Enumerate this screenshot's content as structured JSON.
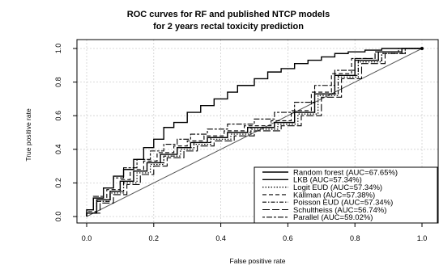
{
  "chart_data": {
    "type": "line",
    "title": "ROC curves for RF and published NTCP models",
    "subtitle": "for 2 years rectal toxicity prediction",
    "xlabel": "False positive rate",
    "ylabel": "True positive rate",
    "xlim": [
      0,
      1
    ],
    "ylim": [
      0,
      1
    ],
    "xticks": [
      "0.0",
      "0.2",
      "0.4",
      "0.6",
      "0.8",
      "1.0"
    ],
    "yticks": [
      "0.0",
      "0.2",
      "0.4",
      "0.6",
      "0.8",
      "1.0"
    ],
    "grid": true,
    "legend_position": "bottom-right",
    "reference_line": [
      [
        0,
        0
      ],
      [
        1,
        1
      ]
    ],
    "series": [
      {
        "name": "Random forest (AUC=67.65%)",
        "dash": "solid",
        "x": [
          0,
          0,
          0.02,
          0.02,
          0.05,
          0.05,
          0.08,
          0.08,
          0.11,
          0.11,
          0.14,
          0.14,
          0.17,
          0.17,
          0.2,
          0.2,
          0.23,
          0.23,
          0.26,
          0.26,
          0.3,
          0.3,
          0.34,
          0.34,
          0.38,
          0.38,
          0.42,
          0.42,
          0.45,
          0.45,
          0.5,
          0.5,
          0.54,
          0.54,
          0.58,
          0.58,
          0.62,
          0.62,
          0.66,
          0.66,
          0.7,
          0.7,
          0.74,
          0.74,
          0.78,
          0.78,
          0.83,
          0.83,
          0.88,
          0.88,
          0.94,
          0.94,
          1.0
        ],
        "y": [
          0,
          0.04,
          0.04,
          0.11,
          0.11,
          0.17,
          0.17,
          0.24,
          0.24,
          0.28,
          0.28,
          0.34,
          0.34,
          0.41,
          0.41,
          0.46,
          0.46,
          0.53,
          0.53,
          0.56,
          0.56,
          0.62,
          0.62,
          0.66,
          0.66,
          0.7,
          0.7,
          0.74,
          0.74,
          0.78,
          0.78,
          0.82,
          0.82,
          0.86,
          0.86,
          0.88,
          0.88,
          0.91,
          0.91,
          0.93,
          0.93,
          0.95,
          0.95,
          0.97,
          0.97,
          0.98,
          0.98,
          0.99,
          0.99,
          1.0,
          1.0,
          1.0,
          1.0
        ]
      },
      {
        "name": "LKB (AUC=57.34%)",
        "dash": "solid",
        "x": [
          0,
          0,
          0.03,
          0.03,
          0.07,
          0.07,
          0.1,
          0.1,
          0.14,
          0.14,
          0.18,
          0.18,
          0.22,
          0.22,
          0.27,
          0.27,
          0.31,
          0.31,
          0.36,
          0.36,
          0.42,
          0.42,
          0.48,
          0.48,
          0.56,
          0.56,
          0.62,
          0.62,
          0.68,
          0.68,
          0.74,
          0.74,
          0.8,
          0.8,
          0.87,
          0.87,
          0.94,
          0.94,
          1.0
        ],
        "y": [
          0,
          0.02,
          0.02,
          0.1,
          0.1,
          0.15,
          0.15,
          0.21,
          0.21,
          0.27,
          0.27,
          0.32,
          0.32,
          0.37,
          0.37,
          0.41,
          0.41,
          0.44,
          0.44,
          0.47,
          0.47,
          0.5,
          0.5,
          0.53,
          0.53,
          0.56,
          0.56,
          0.62,
          0.62,
          0.73,
          0.73,
          0.84,
          0.84,
          0.93,
          0.93,
          0.98,
          0.98,
          1.0,
          1.0
        ]
      },
      {
        "name": "Logit EUD (AUC=57.34%)",
        "dash": "dotted",
        "x": [
          0,
          0,
          0.03,
          0.03,
          0.07,
          0.07,
          0.11,
          0.11,
          0.15,
          0.15,
          0.19,
          0.19,
          0.23,
          0.23,
          0.28,
          0.28,
          0.32,
          0.32,
          0.37,
          0.37,
          0.43,
          0.43,
          0.49,
          0.49,
          0.57,
          0.57,
          0.63,
          0.63,
          0.69,
          0.69,
          0.75,
          0.75,
          0.81,
          0.81,
          0.88,
          0.88,
          0.95,
          0.95,
          1.0
        ],
        "y": [
          0,
          0.02,
          0.02,
          0.09,
          0.09,
          0.14,
          0.14,
          0.2,
          0.2,
          0.26,
          0.26,
          0.31,
          0.31,
          0.36,
          0.36,
          0.4,
          0.4,
          0.43,
          0.43,
          0.46,
          0.46,
          0.49,
          0.49,
          0.52,
          0.52,
          0.55,
          0.55,
          0.61,
          0.61,
          0.72,
          0.72,
          0.83,
          0.83,
          0.92,
          0.92,
          0.97,
          0.97,
          1.0,
          1.0
        ]
      },
      {
        "name": "Källman (AUC=57.38%)",
        "dash": "dashed",
        "x": [
          0,
          0,
          0.03,
          0.03,
          0.06,
          0.06,
          0.1,
          0.1,
          0.13,
          0.13,
          0.17,
          0.17,
          0.21,
          0.21,
          0.26,
          0.26,
          0.3,
          0.3,
          0.35,
          0.35,
          0.41,
          0.41,
          0.47,
          0.47,
          0.55,
          0.55,
          0.61,
          0.61,
          0.67,
          0.67,
          0.73,
          0.73,
          0.79,
          0.79,
          0.86,
          0.86,
          0.93,
          0.93,
          1.0
        ],
        "y": [
          0,
          0.03,
          0.03,
          0.1,
          0.1,
          0.16,
          0.16,
          0.22,
          0.22,
          0.28,
          0.28,
          0.33,
          0.33,
          0.38,
          0.38,
          0.42,
          0.42,
          0.45,
          0.45,
          0.48,
          0.48,
          0.51,
          0.51,
          0.54,
          0.54,
          0.57,
          0.57,
          0.63,
          0.63,
          0.74,
          0.74,
          0.85,
          0.85,
          0.94,
          0.94,
          0.98,
          0.98,
          1.0,
          1.0
        ]
      },
      {
        "name": "Poisson EUD (AUC=57.34%)",
        "dash": "dashdot",
        "x": [
          0,
          0,
          0.03,
          0.03,
          0.07,
          0.07,
          0.11,
          0.11,
          0.14,
          0.14,
          0.18,
          0.18,
          0.23,
          0.23,
          0.27,
          0.27,
          0.32,
          0.32,
          0.37,
          0.37,
          0.42,
          0.42,
          0.49,
          0.49,
          0.56,
          0.56,
          0.62,
          0.62,
          0.68,
          0.68,
          0.75,
          0.75,
          0.81,
          0.81,
          0.88,
          0.88,
          0.94,
          0.94,
          1.0
        ],
        "y": [
          0,
          0.02,
          0.02,
          0.09,
          0.09,
          0.15,
          0.15,
          0.21,
          0.21,
          0.27,
          0.27,
          0.32,
          0.32,
          0.36,
          0.36,
          0.41,
          0.41,
          0.44,
          0.44,
          0.47,
          0.47,
          0.5,
          0.5,
          0.53,
          0.53,
          0.56,
          0.56,
          0.62,
          0.62,
          0.73,
          0.73,
          0.84,
          0.84,
          0.93,
          0.93,
          0.97,
          0.97,
          1.0,
          1.0
        ]
      },
      {
        "name": "Schultheiss (AUC=56.74%)",
        "dash": "longdash",
        "x": [
          0,
          0,
          0.04,
          0.04,
          0.08,
          0.08,
          0.12,
          0.12,
          0.16,
          0.16,
          0.2,
          0.2,
          0.24,
          0.24,
          0.29,
          0.29,
          0.33,
          0.33,
          0.38,
          0.38,
          0.44,
          0.44,
          0.5,
          0.5,
          0.58,
          0.58,
          0.64,
          0.64,
          0.7,
          0.7,
          0.76,
          0.76,
          0.82,
          0.82,
          0.89,
          0.89,
          0.95,
          0.95,
          1.0
        ],
        "y": [
          0,
          0.02,
          0.02,
          0.08,
          0.08,
          0.13,
          0.13,
          0.19,
          0.19,
          0.25,
          0.25,
          0.3,
          0.3,
          0.35,
          0.35,
          0.39,
          0.39,
          0.42,
          0.42,
          0.45,
          0.45,
          0.48,
          0.48,
          0.51,
          0.51,
          0.54,
          0.54,
          0.6,
          0.6,
          0.71,
          0.71,
          0.82,
          0.82,
          0.91,
          0.91,
          0.97,
          0.97,
          1.0,
          1.0
        ]
      },
      {
        "name": "Parallel (AUC=59.02%)",
        "dash": "twodash",
        "x": [
          0,
          0,
          0.02,
          0.02,
          0.05,
          0.05,
          0.08,
          0.08,
          0.11,
          0.11,
          0.15,
          0.15,
          0.19,
          0.19,
          0.23,
          0.23,
          0.27,
          0.27,
          0.31,
          0.31,
          0.36,
          0.36,
          0.42,
          0.42,
          0.5,
          0.5,
          0.56,
          0.56,
          0.62,
          0.62,
          0.68,
          0.68,
          0.74,
          0.74,
          0.8,
          0.8,
          0.86,
          0.86,
          0.93,
          0.93,
          1.0
        ],
        "y": [
          0,
          0.04,
          0.04,
          0.12,
          0.12,
          0.17,
          0.17,
          0.23,
          0.23,
          0.29,
          0.29,
          0.34,
          0.34,
          0.39,
          0.39,
          0.43,
          0.43,
          0.46,
          0.46,
          0.49,
          0.49,
          0.52,
          0.52,
          0.55,
          0.55,
          0.58,
          0.58,
          0.62,
          0.62,
          0.68,
          0.68,
          0.78,
          0.78,
          0.87,
          0.87,
          0.94,
          0.94,
          0.98,
          0.98,
          1.0,
          1.0
        ]
      }
    ]
  }
}
